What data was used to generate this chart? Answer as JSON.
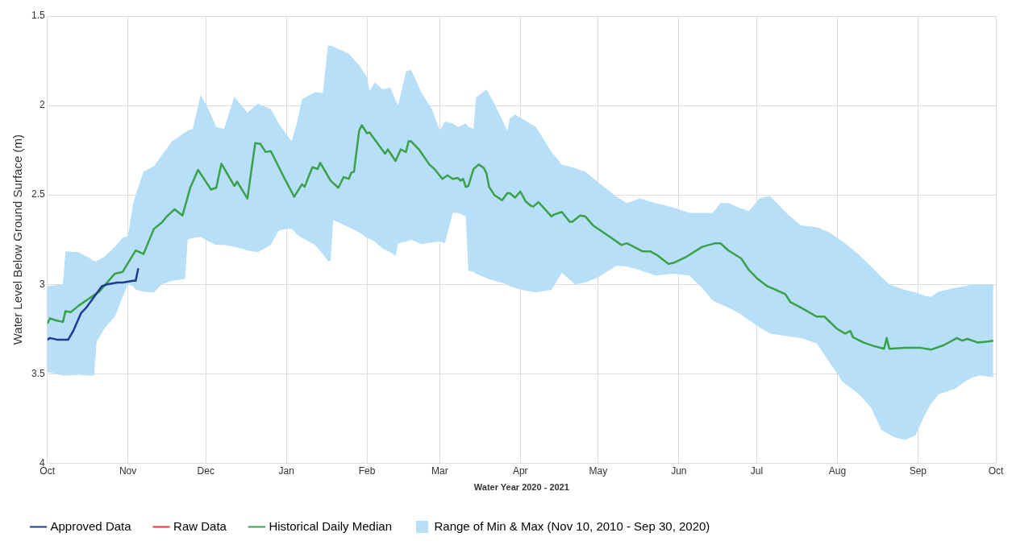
{
  "chart_data": {
    "type": "line",
    "xlabel": "Water Year 2020 - 2021",
    "ylabel": "Water Level Below Ground Surface (m)",
    "xlim": [
      "2020-10-01",
      "2021-10-01"
    ],
    "xticks": [
      {
        "value": "2020-10-01",
        "label": "Oct"
      },
      {
        "value": "2020-11-01",
        "label": "Nov"
      },
      {
        "value": "2020-12-01",
        "label": "Dec"
      },
      {
        "value": "2021-01-01",
        "label": "Jan"
      },
      {
        "value": "2021-02-01",
        "label": "Feb"
      },
      {
        "value": "2021-03-01",
        "label": "Mar"
      },
      {
        "value": "2021-04-01",
        "label": "Apr"
      },
      {
        "value": "2021-05-01",
        "label": "May"
      },
      {
        "value": "2021-06-01",
        "label": "Jun"
      },
      {
        "value": "2021-07-01",
        "label": "Jul"
      },
      {
        "value": "2021-08-01",
        "label": "Aug"
      },
      {
        "value": "2021-09-01",
        "label": "Sep"
      },
      {
        "value": "2021-10-01",
        "label": "Oct"
      }
    ],
    "ylim": [
      4,
      1.5
    ],
    "yticks": [
      1.5,
      2,
      2.5,
      3,
      3.5,
      4
    ],
    "grid": true,
    "legend": "bottom left",
    "series": [
      {
        "name": "Approved Data",
        "type": "line",
        "color": "#1f3a93",
        "x": [
          "2020-10-01",
          "2020-10-02",
          "2020-10-05",
          "2020-10-09",
          "2020-10-11",
          "2020-10-14",
          "2020-10-16",
          "2020-10-19",
          "2020-10-22",
          "2020-10-24",
          "2020-10-28",
          "2020-10-30",
          "2020-11-03",
          "2020-11-04",
          "2020-11-05"
        ],
        "values": [
          3.31,
          3.3,
          3.31,
          3.31,
          3.26,
          3.16,
          3.13,
          3.07,
          3.01,
          3.0,
          2.99,
          2.99,
          2.98,
          2.98,
          2.91
        ]
      },
      {
        "name": "Raw Data",
        "type": "line",
        "color": "#e0403a"
      },
      {
        "name": "Historical Daily Median",
        "type": "line",
        "color": "#3aa14a",
        "x": [
          "2020-10-01",
          "2020-10-02",
          "2020-10-04",
          "2020-10-07",
          "2020-10-08",
          "2020-10-10",
          "2020-10-13",
          "2020-10-17",
          "2020-10-21",
          "2020-10-27",
          "2020-10-30",
          "2020-11-04",
          "2020-11-07",
          "2020-11-11",
          "2020-11-14",
          "2020-11-16",
          "2020-11-19",
          "2020-11-22",
          "2020-11-25",
          "2020-11-28",
          "2020-12-03",
          "2020-12-05",
          "2020-12-07",
          "2020-12-12",
          "2020-12-13",
          "2020-12-17",
          "2020-12-20",
          "2020-12-22",
          "2020-12-24",
          "2020-12-26",
          "2020-12-31",
          "2021-01-04",
          "2021-01-07",
          "2021-01-08",
          "2021-01-11",
          "2021-01-13",
          "2021-01-14",
          "2021-01-18",
          "2021-01-21",
          "2021-01-23",
          "2021-01-25",
          "2021-01-26",
          "2021-01-27",
          "2021-01-29",
          "2021-01-30",
          "2021-02-01",
          "2021-02-02",
          "2021-02-05",
          "2021-02-08",
          "2021-02-09",
          "2021-02-12",
          "2021-02-14",
          "2021-02-16",
          "2021-02-17",
          "2021-02-18",
          "2021-02-21",
          "2021-02-25",
          "2021-02-27",
          "2021-03-02",
          "2021-03-04",
          "2021-03-06",
          "2021-03-08",
          "2021-03-09",
          "2021-03-10",
          "2021-03-11",
          "2021-03-12",
          "2021-03-14",
          "2021-03-16",
          "2021-03-18",
          "2021-03-19",
          "2021-03-20",
          "2021-03-22",
          "2021-03-25",
          "2021-03-27",
          "2021-03-28",
          "2021-03-30",
          "2021-04-01",
          "2021-04-03",
          "2021-04-05",
          "2021-04-06",
          "2021-04-08",
          "2021-04-13",
          "2021-04-14",
          "2021-04-17",
          "2021-04-20",
          "2021-04-21",
          "2021-04-24",
          "2021-04-26",
          "2021-04-29",
          "2021-05-04",
          "2021-05-10",
          "2021-05-12",
          "2021-05-18",
          "2021-05-21",
          "2021-05-24",
          "2021-05-28",
          "2021-05-30",
          "2021-06-04",
          "2021-06-10",
          "2021-06-15",
          "2021-06-17",
          "2021-06-20",
          "2021-06-25",
          "2021-06-28",
          "2021-07-01",
          "2021-07-05",
          "2021-07-09",
          "2021-07-12",
          "2021-07-14",
          "2021-07-18",
          "2021-07-24",
          "2021-07-27",
          "2021-08-01",
          "2021-08-04",
          "2021-08-06",
          "2021-08-07",
          "2021-08-11",
          "2021-08-15",
          "2021-08-19",
          "2021-08-20",
          "2021-08-21",
          "2021-08-27",
          "2021-09-02",
          "2021-09-06",
          "2021-09-11",
          "2021-09-16",
          "2021-09-18",
          "2021-09-20",
          "2021-09-24",
          "2021-09-28",
          "2021-09-30"
        ],
        "values": [
          3.22,
          3.19,
          3.2,
          3.21,
          3.15,
          3.155,
          3.12,
          3.08,
          3.04,
          2.94,
          2.93,
          2.81,
          2.83,
          2.69,
          2.655,
          2.62,
          2.58,
          2.615,
          2.46,
          2.36,
          2.47,
          2.46,
          2.325,
          2.45,
          2.425,
          2.52,
          2.21,
          2.215,
          2.26,
          2.255,
          2.4,
          2.51,
          2.44,
          2.455,
          2.345,
          2.355,
          2.32,
          2.42,
          2.46,
          2.4,
          2.41,
          2.375,
          2.37,
          2.14,
          2.11,
          2.155,
          2.15,
          2.21,
          2.27,
          2.245,
          2.31,
          2.245,
          2.26,
          2.2,
          2.2,
          2.245,
          2.33,
          2.355,
          2.41,
          2.39,
          2.41,
          2.405,
          2.42,
          2.41,
          2.455,
          2.45,
          2.355,
          2.33,
          2.35,
          2.38,
          2.455,
          2.5,
          2.53,
          2.49,
          2.49,
          2.515,
          2.48,
          2.535,
          2.56,
          2.565,
          2.54,
          2.62,
          2.61,
          2.595,
          2.65,
          2.65,
          2.615,
          2.62,
          2.67,
          2.72,
          2.78,
          2.77,
          2.815,
          2.815,
          2.84,
          2.885,
          2.88,
          2.845,
          2.79,
          2.77,
          2.77,
          2.81,
          2.855,
          2.92,
          2.965,
          3.01,
          3.035,
          3.055,
          3.1,
          3.13,
          3.18,
          3.18,
          3.25,
          3.275,
          3.26,
          3.295,
          3.325,
          3.345,
          3.36,
          3.3,
          3.36,
          3.355,
          3.355,
          3.365,
          3.34,
          3.3,
          3.315,
          3.305,
          3.325,
          3.32,
          3.315
        ]
      },
      {
        "name": "Range of Min & Max (Nov 10, 2010 - Sep 30, 2020)",
        "type": "area",
        "color": "#b7dff7",
        "x": [
          "2020-10-01",
          "2020-10-07",
          "2020-10-08",
          "2020-10-13",
          "2020-10-17",
          "2020-10-19",
          "2020-10-20",
          "2020-10-23",
          "2020-10-27",
          "2020-10-30",
          "2020-11-01",
          "2020-11-03",
          "2020-11-04",
          "2020-11-07",
          "2020-11-11",
          "2020-11-14",
          "2020-11-18",
          "2020-11-23",
          "2020-11-24",
          "2020-11-26",
          "2020-11-29",
          "2020-12-02",
          "2020-12-05",
          "2020-12-08",
          "2020-12-12",
          "2020-12-17",
          "2020-12-21",
          "2020-12-26",
          "2020-12-29",
          "2021-01-01",
          "2021-01-03",
          "2021-01-05",
          "2021-01-07",
          "2021-01-12",
          "2021-01-15",
          "2021-01-17",
          "2021-01-18",
          "2021-01-19",
          "2021-01-25",
          "2021-01-29",
          "2021-02-01",
          "2021-02-02",
          "2021-02-04",
          "2021-02-07",
          "2021-02-10",
          "2021-02-12",
          "2021-02-13",
          "2021-02-16",
          "2021-02-18",
          "2021-02-22",
          "2021-02-26",
          "2021-03-01",
          "2021-03-03",
          "2021-03-06",
          "2021-03-08",
          "2021-03-11",
          "2021-03-12",
          "2021-03-14",
          "2021-03-15",
          "2021-03-19",
          "2021-03-22",
          "2021-03-27",
          "2021-03-28",
          "2021-03-30",
          "2021-04-03",
          "2021-04-07",
          "2021-04-13",
          "2021-04-17",
          "2021-04-22",
          "2021-04-26",
          "2021-05-01",
          "2021-05-08",
          "2021-05-12",
          "2021-05-17",
          "2021-05-23",
          "2021-05-30",
          "2021-06-05",
          "2021-06-10",
          "2021-06-14",
          "2021-06-17",
          "2021-06-20",
          "2021-06-24",
          "2021-06-28",
          "2021-07-02",
          "2021-07-06",
          "2021-07-13",
          "2021-07-18",
          "2021-07-24",
          "2021-07-29",
          "2021-08-03",
          "2021-08-09",
          "2021-08-14",
          "2021-08-18",
          "2021-08-21",
          "2021-08-23",
          "2021-08-27",
          "2021-08-31",
          "2021-09-04",
          "2021-09-06",
          "2021-09-09",
          "2021-09-15",
          "2021-09-19",
          "2021-09-22",
          "2021-09-25",
          "2021-09-30"
        ],
        "lower": [
          3.01,
          3.0,
          2.815,
          2.82,
          2.85,
          2.87,
          2.87,
          2.845,
          2.79,
          2.74,
          2.73,
          2.55,
          2.5,
          2.37,
          2.34,
          2.28,
          2.2,
          2.15,
          2.14,
          2.13,
          1.94,
          2.02,
          2.12,
          2.13,
          1.95,
          2.04,
          1.99,
          2.02,
          2.1,
          2.16,
          2.2,
          2.1,
          1.965,
          1.925,
          1.93,
          1.665,
          1.665,
          1.67,
          1.71,
          1.775,
          1.84,
          1.92,
          1.87,
          1.91,
          1.9,
          1.97,
          2.0,
          1.81,
          1.8,
          1.93,
          2.02,
          2.14,
          2.09,
          2.1,
          2.12,
          2.1,
          2.12,
          2.13,
          1.955,
          1.91,
          1.99,
          2.14,
          2.07,
          2.05,
          2.085,
          2.12,
          2.26,
          2.33,
          2.35,
          2.37,
          2.43,
          2.51,
          2.545,
          2.52,
          2.545,
          2.57,
          2.6,
          2.6,
          2.6,
          2.545,
          2.545,
          2.57,
          2.59,
          2.52,
          2.505,
          2.61,
          2.67,
          2.68,
          2.71,
          2.76,
          2.83,
          2.9,
          2.96,
          3.0,
          3.01,
          3.03,
          3.045,
          3.065,
          3.07,
          3.04,
          3.02,
          3.01,
          3.0,
          3.0,
          3.0
        ],
        "values": [
          null,
          null,
          null,
          null,
          null,
          null,
          null,
          null,
          null,
          null,
          null,
          null,
          null,
          null,
          null,
          null,
          null,
          null,
          null,
          null,
          null,
          null,
          null,
          null,
          null,
          null,
          null,
          null,
          null,
          null,
          null,
          null,
          null,
          null,
          null,
          null,
          null,
          null,
          null,
          null,
          null,
          null,
          null,
          null,
          null,
          null,
          null,
          null,
          null,
          null,
          null,
          null,
          null,
          null,
          null,
          null,
          null,
          null,
          null,
          null,
          null,
          null,
          null,
          null,
          null,
          null,
          null,
          null,
          null,
          null,
          null,
          null,
          null,
          null,
          null,
          null,
          null,
          null,
          null,
          null,
          null,
          null,
          null,
          null,
          null,
          null,
          null,
          null,
          null,
          null,
          null,
          null,
          null,
          null,
          null,
          null,
          null,
          null,
          null,
          null,
          null,
          null,
          null,
          null,
          null
        ],
        "upper": [
          3.49,
          3.51,
          3.51,
          3.505,
          3.51,
          3.51,
          3.32,
          3.245,
          3.18,
          3.07,
          3.0,
          3.01,
          3.03,
          3.04,
          3.045,
          3.0,
          2.98,
          2.97,
          2.75,
          2.74,
          2.735,
          2.76,
          2.78,
          2.78,
          2.79,
          2.81,
          2.82,
          2.78,
          2.7,
          2.69,
          2.69,
          2.72,
          2.74,
          2.78,
          2.83,
          2.87,
          2.87,
          2.64,
          2.68,
          2.71,
          2.74,
          2.745,
          2.76,
          2.8,
          2.82,
          2.84,
          2.77,
          2.76,
          2.75,
          2.775,
          2.765,
          2.76,
          2.77,
          2.6,
          2.6,
          2.62,
          2.925,
          2.93,
          2.94,
          2.965,
          2.98,
          3.0,
          3.01,
          3.02,
          3.035,
          3.045,
          3.03,
          2.935,
          3.0,
          2.99,
          2.96,
          2.895,
          2.9,
          2.92,
          2.95,
          2.94,
          2.95,
          3.02,
          3.09,
          3.11,
          3.13,
          3.16,
          3.2,
          3.24,
          3.275,
          3.29,
          3.3,
          3.33,
          3.435,
          3.545,
          3.61,
          3.69,
          3.815,
          3.84,
          3.855,
          3.87,
          3.845,
          3.72,
          3.67,
          3.615,
          3.585,
          3.545,
          3.52,
          3.51,
          3.52
        ]
      }
    ]
  }
}
